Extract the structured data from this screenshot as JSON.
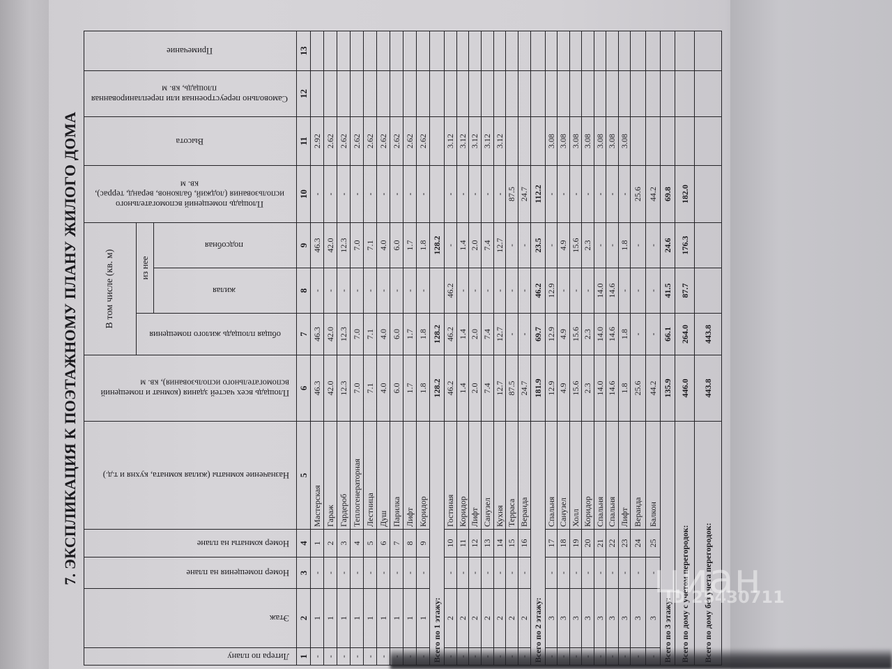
{
  "title": "7. ЭКСПЛИКАЦИЯ К ПОЭТАЖНОМУ ПЛАНУ ЖИЛОГО ДОМА",
  "headers": {
    "c1": "Литера по плану",
    "c2": "Этаж",
    "c3": "Номер помещения на плане",
    "c4": "Номер комнаты на плане",
    "c5": "Назначение комнаты (жилая комната, кухня и т.д.)",
    "c6": "Площадь всех частей здания (комнат и помещений вспомогательного использования), кв. м",
    "group": "В том числе (кв. м)",
    "c7": "общая площадь жилого помещения",
    "subgroup": "из нее",
    "c8": "жилая",
    "c9": "подсобная",
    "c10": "Площадь помещений вспомогательного использования (лоджий, балконов, веранд, террас), кв. м",
    "c11": "Высота",
    "c12": "Самовольно переустроенная или перепланированная площадь, кв. м",
    "c13": "Примечание"
  },
  "column_numbers": [
    "1",
    "2",
    "3",
    "4",
    "5",
    "6",
    "7",
    "8",
    "9",
    "10",
    "11",
    "12",
    "13"
  ],
  "rows": [
    {
      "type": "f1",
      "cells": [
        "-",
        "1",
        "-",
        "1",
        "Мастерская",
        "46.3",
        "46.3",
        "-",
        "46.3",
        "-",
        "2.92",
        "",
        ""
      ]
    },
    {
      "type": "f1",
      "cells": [
        "-",
        "1",
        "-",
        "2",
        "Гараж",
        "42.0",
        "42.0",
        "-",
        "42.0",
        "-",
        "2.62",
        "",
        ""
      ]
    },
    {
      "type": "f1",
      "cells": [
        "-",
        "1",
        "-",
        "3",
        "Гардероб",
        "12.3",
        "12.3",
        "-",
        "12.3",
        "-",
        "2.62",
        "",
        ""
      ]
    },
    {
      "type": "f1",
      "cells": [
        "-",
        "1",
        "-",
        "4",
        "Теплогенераторная",
        "7.0",
        "7.0",
        "-",
        "7.0",
        "-",
        "2.62",
        "",
        ""
      ]
    },
    {
      "type": "f1",
      "cells": [
        "-",
        "1",
        "-",
        "5",
        "Лестница",
        "7.1",
        "7.1",
        "-",
        "7.1",
        "-",
        "2.62",
        "",
        ""
      ]
    },
    {
      "type": "f1",
      "cells": [
        "-",
        "1",
        "-",
        "6",
        "Душ",
        "4.0",
        "4.0",
        "-",
        "4.0",
        "-",
        "2.62",
        "",
        ""
      ]
    },
    {
      "type": "f1",
      "cells": [
        "-",
        "1",
        "-",
        "7",
        "Парилка",
        "6.0",
        "6.0",
        "-",
        "6.0",
        "-",
        "2.62",
        "",
        ""
      ]
    },
    {
      "type": "f1",
      "cells": [
        "-",
        "1",
        "-",
        "8",
        "Лифт",
        "1.7",
        "1.7",
        "-",
        "1.7",
        "-",
        "2.62",
        "",
        ""
      ]
    },
    {
      "type": "f1",
      "cells": [
        "-",
        "1",
        "-",
        "9",
        "Коридор",
        "1.8",
        "1.8",
        "-",
        "1.8",
        "-",
        "2.62",
        "",
        ""
      ]
    },
    {
      "type": "tot",
      "label": "Всего по 1 этажу:",
      "values": [
        "128.2",
        "128.2",
        "",
        "128.2",
        "",
        "",
        "",
        ""
      ]
    },
    {
      "type": "f2",
      "cells": [
        "-",
        "2",
        "-",
        "10",
        "Гостиная",
        "46.2",
        "46.2",
        "46.2",
        "-",
        "-",
        "3.12",
        "",
        ""
      ]
    },
    {
      "type": "f2",
      "cells": [
        "-",
        "2",
        "-",
        "11",
        "Коридор",
        "1.4",
        "1.4",
        "-",
        "1.4",
        "-",
        "3.12",
        "",
        ""
      ]
    },
    {
      "type": "f2",
      "cells": [
        "-",
        "2",
        "-",
        "12",
        "Лифт",
        "2.0",
        "2.0",
        "-",
        "2.0",
        "-",
        "3.12",
        "",
        ""
      ]
    },
    {
      "type": "f2",
      "cells": [
        "-",
        "2",
        "-",
        "13",
        "Санузел",
        "7.4",
        "7.4",
        "-",
        "7.4",
        "-",
        "3.12",
        "",
        ""
      ]
    },
    {
      "type": "f2",
      "cells": [
        "-",
        "2",
        "-",
        "14",
        "Кухня",
        "12.7",
        "12.7",
        "-",
        "12.7",
        "-",
        "3.12",
        "",
        ""
      ]
    },
    {
      "type": "f2",
      "cells": [
        "-",
        "2",
        "-",
        "15",
        "Терраса",
        "87.5",
        "-",
        "-",
        "-",
        "87.5",
        "",
        "",
        ""
      ]
    },
    {
      "type": "f2",
      "cells": [
        "-",
        "2",
        "-",
        "16",
        "Веранда",
        "24.7",
        "-",
        "-",
        "-",
        "24.7",
        "",
        "",
        ""
      ]
    },
    {
      "type": "tot",
      "label": "Всего по 2 этажу:",
      "values": [
        "181.9",
        "69.7",
        "46.2",
        "23.5",
        "112.2",
        "",
        "",
        ""
      ]
    },
    {
      "type": "f3",
      "cells": [
        "-",
        "3",
        "-",
        "17",
        "Спальня",
        "12.9",
        "12.9",
        "12.9",
        "-",
        "-",
        "3.08",
        "",
        ""
      ]
    },
    {
      "type": "f3",
      "cells": [
        "-",
        "3",
        "-",
        "18",
        "Санузел",
        "4.9",
        "4.9",
        "-",
        "4.9",
        "-",
        "3.08",
        "",
        ""
      ]
    },
    {
      "type": "f3",
      "cells": [
        "-",
        "3",
        "-",
        "19",
        "Холл",
        "15.6",
        "15.6",
        "-",
        "15.6",
        "-",
        "3.08",
        "",
        ""
      ]
    },
    {
      "type": "f3",
      "cells": [
        "-",
        "3",
        "-",
        "20",
        "Коридор",
        "2.3",
        "2.3",
        "-",
        "2.3",
        "-",
        "3.08",
        "",
        ""
      ]
    },
    {
      "type": "f3",
      "cells": [
        "-",
        "3",
        "-",
        "21",
        "Спальня",
        "14.0",
        "14.0",
        "14.0",
        "-",
        "-",
        "3.08",
        "",
        ""
      ]
    },
    {
      "type": "f3",
      "cells": [
        "-",
        "3",
        "-",
        "22",
        "Спальня",
        "14.6",
        "14.6",
        "14.6",
        "-",
        "-",
        "3.08",
        "",
        ""
      ]
    },
    {
      "type": "f3",
      "cells": [
        "-",
        "3",
        "-",
        "23",
        "Лифт",
        "1.8",
        "1.8",
        "-",
        "1.8",
        "-",
        "3.08",
        "",
        ""
      ]
    },
    {
      "type": "f3b",
      "cells": [
        "-",
        "3",
        "-",
        "24",
        "Веранда",
        "25.6",
        "-",
        "-",
        "-",
        "25.6",
        "",
        "",
        ""
      ]
    },
    {
      "type": "f3b",
      "cells": [
        "-",
        "3",
        "-",
        "25",
        "Балкон",
        "44.2",
        "-",
        "-",
        "-",
        "44.2",
        "",
        "",
        ""
      ]
    },
    {
      "type": "tot",
      "label": "Всего по 3 этажу:",
      "values": [
        "135.9",
        "66.1",
        "41.5",
        "24.6",
        "69.8",
        "",
        "",
        ""
      ]
    },
    {
      "type": "tot grand",
      "label": "Всего по дому с учетом перегородок:",
      "values": [
        "446.0",
        "264.0",
        "87.7",
        "176.3",
        "182.0",
        "",
        "",
        ""
      ]
    },
    {
      "type": "tot grand2",
      "label": "Всего по дому без учета перегородок:",
      "values": [
        "443.8",
        "443.8",
        "",
        "",
        "",
        "",
        "",
        ""
      ]
    }
  ],
  "watermark": {
    "brand": "циан",
    "id": "ID 25430711"
  }
}
